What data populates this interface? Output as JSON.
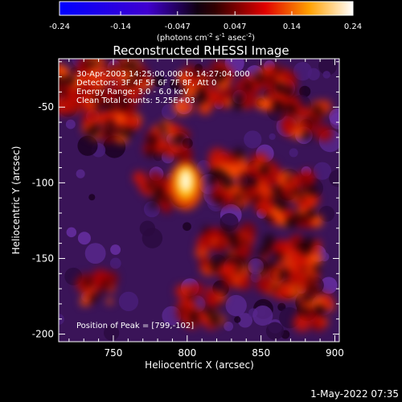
{
  "chart_data": {
    "type": "heatmap",
    "title": "Reconstructed RHESSI Image",
    "xlabel": "Heliocentric X (arcsec)",
    "ylabel": "Heliocentric Y (arcsec)",
    "xlim": [
      713,
      903
    ],
    "ylim": [
      -205,
      -18
    ],
    "x_ticks": [
      750,
      800,
      850,
      900
    ],
    "y_ticks": [
      -50,
      -100,
      -150,
      -200
    ],
    "colorbar": {
      "ticks": [
        "-0.24",
        "-0.14",
        "-0.047",
        "0.047",
        "0.14",
        "0.24"
      ],
      "units_label": "(photons cm",
      "units_sup1": "-2",
      "units_mid1": " s",
      "units_sup2": "-1",
      "units_mid2": " asec",
      "units_sup3": "-2",
      "units_end": ")",
      "vmin": -0.24,
      "vmax": 0.24
    },
    "info_lines": [
      "30-Apr-2003 14:25:00.000 to 14:27:04.000",
      "Detectors: 3F 4F 5F 6F 7F 8F, Att 0",
      "Energy Range: 3.0 - 6.0 keV",
      "Clean    Total counts: 5.25E+03"
    ],
    "peak_label": "Position of Peak = [799,-102]",
    "peak_position": [
      799,
      -102
    ]
  },
  "footer": {
    "date": "1-May-2022 07:35"
  }
}
